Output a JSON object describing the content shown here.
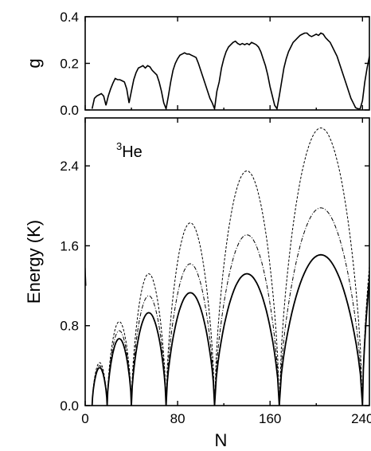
{
  "chart_data": [
    {
      "type": "line",
      "panel": "top",
      "ylabel": "g",
      "xlabel": "",
      "xlim": [
        0,
        246
      ],
      "ylim": [
        0,
        0.4
      ],
      "xticks": [
        0,
        80,
        160,
        240
      ],
      "yticks": [
        0.0,
        0.2,
        0.4
      ],
      "xtick_labels": [],
      "ytick_labels": [
        "0.0",
        "0.2",
        "0.4"
      ],
      "grid": false,
      "series": [
        {
          "style": "solid",
          "x": [
            6,
            8,
            10,
            12,
            14,
            16,
            18,
            20,
            22,
            24,
            26,
            28,
            30,
            32,
            34,
            36,
            38,
            40,
            42,
            44,
            46,
            48,
            50,
            52,
            54,
            56,
            58,
            60,
            62,
            64,
            66,
            68,
            70,
            72,
            74,
            76,
            78,
            80,
            82,
            84,
            86,
            88,
            90,
            92,
            94,
            96,
            98,
            100,
            102,
            104,
            106,
            108,
            110,
            112,
            114,
            116,
            118,
            120,
            122,
            124,
            126,
            128,
            130,
            132,
            134,
            136,
            138,
            140,
            142,
            144,
            146,
            148,
            150,
            152,
            154,
            156,
            158,
            160,
            162,
            164,
            166,
            168,
            170,
            172,
            174,
            176,
            178,
            180,
            182,
            184,
            186,
            188,
            190,
            192,
            194,
            196,
            198,
            200,
            202,
            204,
            206,
            208,
            210,
            212,
            214,
            216,
            218,
            220,
            222,
            224,
            226,
            228,
            230,
            232,
            234,
            236,
            238,
            240,
            242,
            244,
            246
          ],
          "y": [
            0.005,
            0.05,
            0.06,
            0.065,
            0.07,
            0.06,
            0.02,
            0.06,
            0.09,
            0.115,
            0.135,
            0.13,
            0.13,
            0.125,
            0.12,
            0.09,
            0.03,
            0.08,
            0.13,
            0.16,
            0.18,
            0.185,
            0.19,
            0.18,
            0.19,
            0.185,
            0.17,
            0.16,
            0.15,
            0.12,
            0.08,
            0.03,
            0.005,
            0.06,
            0.12,
            0.17,
            0.2,
            0.22,
            0.235,
            0.24,
            0.245,
            0.24,
            0.24,
            0.235,
            0.23,
            0.225,
            0.2,
            0.17,
            0.14,
            0.11,
            0.08,
            0.05,
            0.03,
            0.005,
            0.08,
            0.12,
            0.18,
            0.22,
            0.25,
            0.27,
            0.28,
            0.29,
            0.295,
            0.285,
            0.28,
            0.285,
            0.28,
            0.285,
            0.28,
            0.29,
            0.285,
            0.28,
            0.27,
            0.25,
            0.22,
            0.19,
            0.15,
            0.1,
            0.06,
            0.02,
            0.005,
            0.06,
            0.12,
            0.18,
            0.22,
            0.25,
            0.27,
            0.29,
            0.3,
            0.31,
            0.32,
            0.325,
            0.33,
            0.33,
            0.32,
            0.315,
            0.32,
            0.325,
            0.32,
            0.33,
            0.325,
            0.31,
            0.3,
            0.29,
            0.27,
            0.25,
            0.23,
            0.2,
            0.17,
            0.14,
            0.11,
            0.08,
            0.05,
            0.03,
            0.01,
            0.005,
            0.005,
            0.04,
            0.12,
            0.18,
            0.23
          ]
        }
      ]
    },
    {
      "type": "line",
      "panel": "bottom",
      "ylabel": "Energy (K)",
      "xlabel": "N",
      "xlim": [
        0,
        246
      ],
      "ylim": [
        0,
        2.88
      ],
      "xticks": [
        0,
        80,
        160,
        240
      ],
      "yticks": [
        0.0,
        0.8,
        1.6,
        2.4
      ],
      "xtick_labels": [
        "0",
        "80",
        "160",
        "240"
      ],
      "ytick_labels": [
        "0.0",
        "0.8",
        "1.6",
        "2.4"
      ],
      "grid": false,
      "annotation": {
        "superscript": "3",
        "text": "He"
      },
      "bumps": [
        {
          "start": 6,
          "end": 19,
          "peaks": {
            "solid": 0.38,
            "dotdash": 0.4,
            "dashed": 0.43
          }
        },
        {
          "start": 19,
          "end": 40,
          "peaks": {
            "solid": 0.67,
            "dotdash": 0.75,
            "dashed": 0.84
          }
        },
        {
          "start": 40,
          "end": 70,
          "peaks": {
            "solid": 0.93,
            "dotdash": 1.1,
            "dashed": 1.32
          }
        },
        {
          "start": 70,
          "end": 112,
          "peaks": {
            "solid": 1.13,
            "dotdash": 1.42,
            "dashed": 1.83
          }
        },
        {
          "start": 112,
          "end": 168,
          "peaks": {
            "solid": 1.32,
            "dotdash": 1.71,
            "dashed": 2.35
          }
        },
        {
          "start": 168,
          "end": 240,
          "peaks": {
            "solid": 1.51,
            "dotdash": 1.98,
            "dashed": 2.78
          }
        }
      ],
      "edge": {
        "x_start": 240,
        "x_end": 246,
        "values": {
          "solid": 1.25,
          "dotdash": 1.34,
          "dashed": 1.4
        }
      },
      "series": [
        {
          "style": "dashed"
        },
        {
          "style": "dotdash"
        },
        {
          "style": "solid"
        }
      ]
    }
  ]
}
